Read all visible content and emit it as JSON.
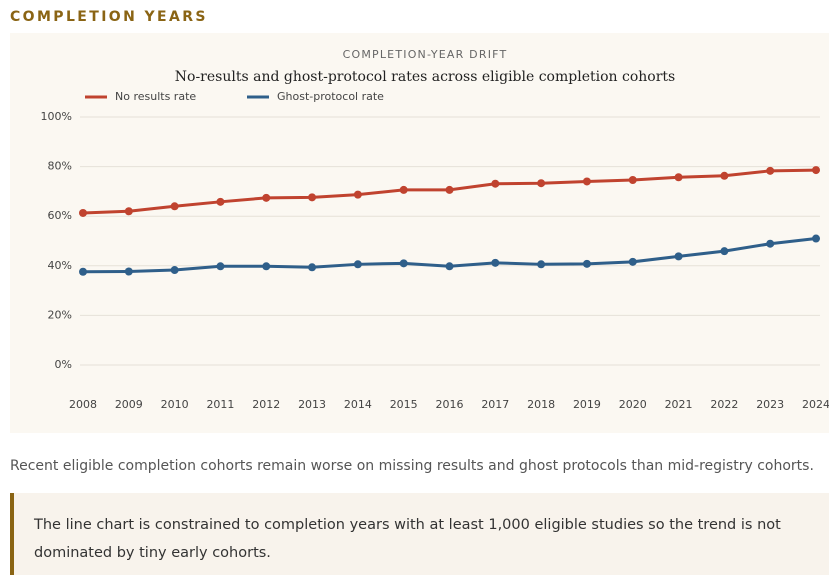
{
  "section_title": "COMPLETION YEARS",
  "chart_data": {
    "type": "line",
    "subtitle": "COMPLETION-YEAR DRIFT",
    "title": "No-results and ghost-protocol rates across eligible completion cohorts",
    "categories": [
      "2008",
      "2009",
      "2010",
      "2011",
      "2012",
      "2013",
      "2014",
      "2015",
      "2016",
      "2017",
      "2018",
      "2019",
      "2020",
      "2021",
      "2022",
      "2023",
      "2024"
    ],
    "series": [
      {
        "name": "No results rate",
        "color": "#c0432f",
        "values": [
          61.3,
          62,
          64,
          65.8,
          67.4,
          67.6,
          68.7,
          70.6,
          70.6,
          73.1,
          73.3,
          74.0,
          74.6,
          75.7,
          76.3,
          78.3,
          78.6
        ]
      },
      {
        "name": "Ghost-protocol rate",
        "color": "#2f5f8a",
        "values": [
          37.6,
          37.7,
          38.3,
          39.8,
          39.8,
          39.4,
          40.6,
          41.0,
          39.8,
          41.2,
          40.6,
          40.8,
          41.6,
          43.8,
          45.9,
          48.9,
          51.0
        ]
      }
    ],
    "ylim": [
      0,
      100
    ],
    "yticks": [
      {
        "value": 0,
        "label": "0%"
      },
      {
        "value": 20,
        "label": "20%"
      },
      {
        "value": 40,
        "label": "40%"
      },
      {
        "value": 60,
        "label": "60%"
      },
      {
        "value": 80,
        "label": "80%"
      },
      {
        "value": 100,
        "label": "100%"
      }
    ],
    "grid": true,
    "legend": "top-left"
  },
  "summary": "Recent eligible completion cohorts remain worse on missing results and ghost protocols than mid-registry cohorts.",
  "note": "The line chart is constrained to completion years with at least 1,000 eligible studies so the trend is not dominated by tiny early cohorts."
}
